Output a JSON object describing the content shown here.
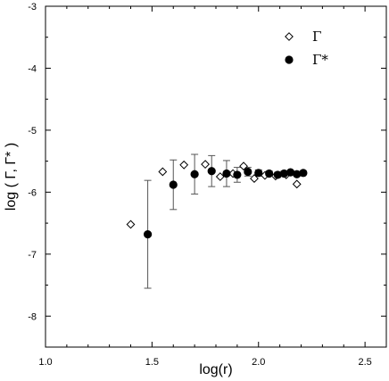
{
  "chart_data": {
    "type": "scatter",
    "xlabel": "log(r)",
    "ylabel": "log ( Γ, Γ* )",
    "xlim": [
      1.0,
      2.6
    ],
    "ylim": [
      -8.5,
      -3.0
    ],
    "xticks": [
      1.0,
      1.5,
      2.0,
      2.5
    ],
    "xtick_labels": [
      "1.0",
      "1.5",
      "2.0",
      "2.5"
    ],
    "yticks": [
      -3,
      -4,
      -5,
      -6,
      -7,
      -8
    ],
    "ytick_labels": [
      "-3",
      "-4",
      "-5",
      "-6",
      "-7",
      "-8"
    ],
    "grid": false,
    "legend_position": "top-right",
    "series": [
      {
        "name": "Γ",
        "marker": "open-diamond",
        "x": [
          1.4,
          1.55,
          1.65,
          1.75,
          1.82,
          1.88,
          1.93,
          1.98,
          2.03,
          2.08,
          2.13,
          2.18
        ],
        "y": [
          -6.52,
          -5.67,
          -5.56,
          -5.55,
          -5.75,
          -5.7,
          -5.58,
          -5.78,
          -5.73,
          -5.74,
          -5.72,
          -5.87
        ]
      },
      {
        "name": "Γ*",
        "marker": "filled-circle",
        "x": [
          1.48,
          1.6,
          1.7,
          1.78,
          1.85,
          1.9,
          1.95,
          2.0,
          2.05,
          2.09,
          2.12,
          2.15,
          2.18,
          2.21
        ],
        "y": [
          -6.68,
          -5.88,
          -5.71,
          -5.66,
          -5.7,
          -5.72,
          -5.67,
          -5.69,
          -5.7,
          -5.72,
          -5.7,
          -5.68,
          -5.71,
          -5.69
        ],
        "err": [
          0.87,
          0.4,
          0.32,
          0.25,
          0.21,
          0.12,
          0.07,
          0.05,
          0.04,
          0.04,
          0.04,
          0.03,
          0.03,
          0.03
        ]
      }
    ]
  }
}
